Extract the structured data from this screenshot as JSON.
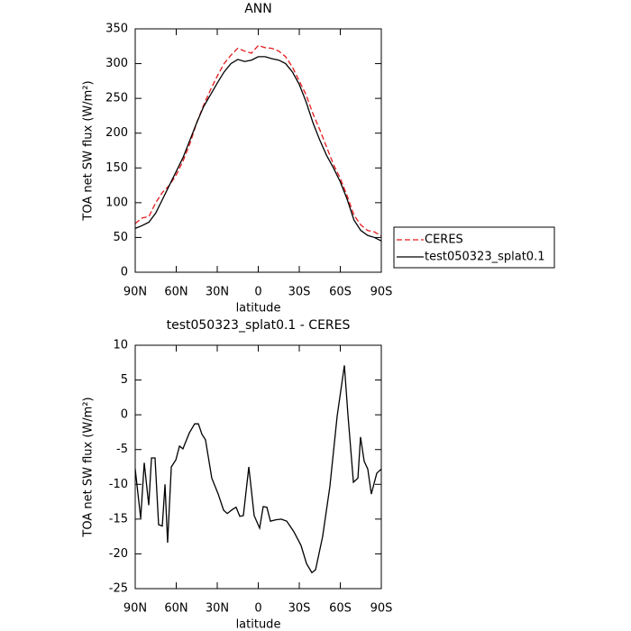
{
  "chart_data": [
    {
      "type": "line",
      "title": "ANN",
      "x_label": "latitude",
      "y_label": "TOA net SW flux (W/m²)",
      "x": [
        90,
        85,
        80,
        75,
        70,
        65,
        60,
        55,
        50,
        45,
        40,
        35,
        30,
        25,
        20,
        15,
        10,
        5,
        0,
        -5,
        -10,
        -15,
        -20,
        -25,
        -30,
        -35,
        -40,
        -45,
        -50,
        -55,
        -60,
        -65,
        -70,
        -75,
        -80,
        -85,
        -90
      ],
      "series": [
        {
          "name": "CERES",
          "color": "#e41a1c",
          "line_style": "dashed",
          "values": [
            70,
            78,
            80,
            100,
            115,
            125,
            140,
            160,
            185,
            215,
            240,
            262,
            282,
            300,
            312,
            322,
            318,
            315,
            326,
            323,
            322,
            318,
            310,
            295,
            275,
            255,
            228,
            205,
            180,
            155,
            135,
            110,
            82,
            68,
            60,
            58,
            52
          ]
        },
        {
          "name": "test050323_splat0.1",
          "color": "#000000",
          "line_style": "solid",
          "values": [
            63,
            67,
            72,
            85,
            105,
            125,
            145,
            165,
            190,
            215,
            238,
            255,
            272,
            288,
            300,
            306,
            303,
            305,
            310,
            310,
            307,
            305,
            300,
            288,
            270,
            245,
            215,
            190,
            168,
            150,
            130,
            105,
            75,
            60,
            53,
            50,
            45
          ]
        }
      ],
      "xlim": [
        90,
        -90
      ],
      "xticks": [
        {
          "value": 90,
          "label": "90N"
        },
        {
          "value": 60,
          "label": "60N"
        },
        {
          "value": 30,
          "label": "30N"
        },
        0,
        {
          "value": -30,
          "label": "30S"
        },
        {
          "value": -60,
          "label": "60S"
        },
        {
          "value": -90,
          "label": "90S"
        }
      ],
      "ylim": [
        0,
        350
      ],
      "yticks": [
        0,
        50,
        100,
        150,
        200,
        250,
        300,
        350
      ],
      "legend": "right"
    },
    {
      "type": "line",
      "title": "test050323_splat0.1 - CERES",
      "x_label": "latitude",
      "y_label": "TOA net SW flux (W/m²)",
      "x": [
        90,
        86,
        83.4,
        80.1,
        78.1,
        75.5,
        72.9,
        70.2,
        68.2,
        66.3,
        63.6,
        60.3,
        57.6,
        55.1,
        53.1,
        50.4,
        46.5,
        43.8,
        41.2,
        38.6,
        34,
        29.3,
        25.4,
        22.7,
        18.8,
        16.2,
        13.5,
        10.9,
        6.9,
        3,
        -1,
        -3.6,
        -6.3,
        -8.9,
        -12.9,
        -16.8,
        -20.8,
        -26,
        -31.3,
        -35.3,
        -39.2,
        -41.9,
        -47.1,
        -52.4,
        -57.7,
        -63,
        -65.6,
        -69.6,
        -72.9,
        -74.8,
        -77.5,
        -80.1,
        -82.7,
        -86.7,
        -90
      ],
      "series": [
        {
          "name": "test050323_splat0.1 - CERES",
          "color": "#000000",
          "line_style": "solid",
          "values": [
            -7.8,
            -14.9,
            -6.9,
            -13,
            -6.2,
            -6.2,
            -15.8,
            -16,
            -10,
            -18.4,
            -7.5,
            -6.5,
            -4.5,
            -4.9,
            -3.9,
            -2.6,
            -1.3,
            -1.3,
            -2.8,
            -3.6,
            -9.1,
            -11.4,
            -13.7,
            -14.2,
            -13.6,
            -13.3,
            -14.6,
            -14.5,
            -7.5,
            -14.5,
            -16.3,
            -13.2,
            -13.3,
            -15.3,
            -15.1,
            -15,
            -15.3,
            -16.8,
            -18.8,
            -21.4,
            -22.7,
            -22.3,
            -17.5,
            -10.3,
            -0.2,
            7.1,
            0,
            -9.7,
            -9.1,
            -3.2,
            -6.7,
            -7.8,
            -11.4,
            -8.4,
            -7.8
          ]
        }
      ],
      "xlim": [
        90,
        -90
      ],
      "xticks": [
        {
          "value": 90,
          "label": "90N"
        },
        {
          "value": 60,
          "label": "60N"
        },
        {
          "value": 30,
          "label": "30N"
        },
        0,
        {
          "value": -30,
          "label": "30S"
        },
        {
          "value": -60,
          "label": "60S"
        },
        {
          "value": -90,
          "label": "90S"
        }
      ],
      "ylim": [
        -25,
        10
      ],
      "yticks": [
        -25,
        -20,
        -15,
        -10,
        -5,
        0,
        5,
        10
      ]
    }
  ]
}
